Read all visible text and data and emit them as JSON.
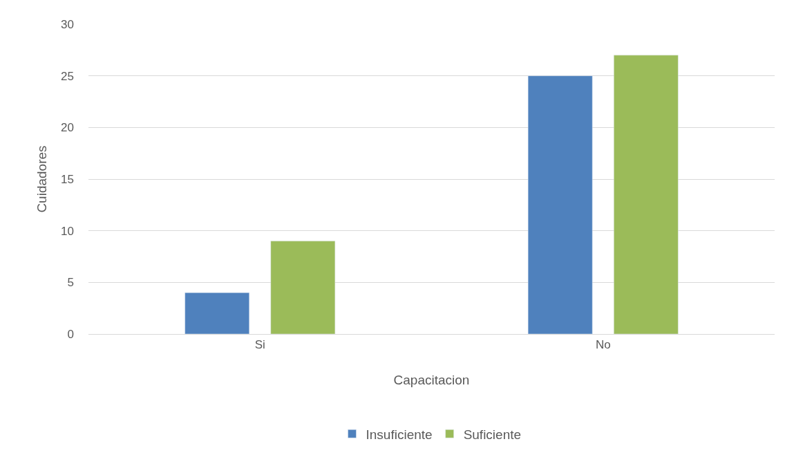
{
  "chart_data": {
    "type": "bar",
    "xlabel": "Capacitacion",
    "ylabel": "Cuidadores",
    "categories": [
      "Si",
      "No"
    ],
    "series": [
      {
        "name": "Insuficiente",
        "color": "#4f81bd",
        "values": [
          4,
          25
        ]
      },
      {
        "name": "Suficiente",
        "color": "#9bbb59",
        "values": [
          9,
          27
        ]
      }
    ],
    "ylim": [
      0,
      30
    ],
    "yticks": [
      0,
      5,
      10,
      15,
      20,
      25,
      30
    ],
    "grid": "y",
    "legend": "bottom"
  }
}
